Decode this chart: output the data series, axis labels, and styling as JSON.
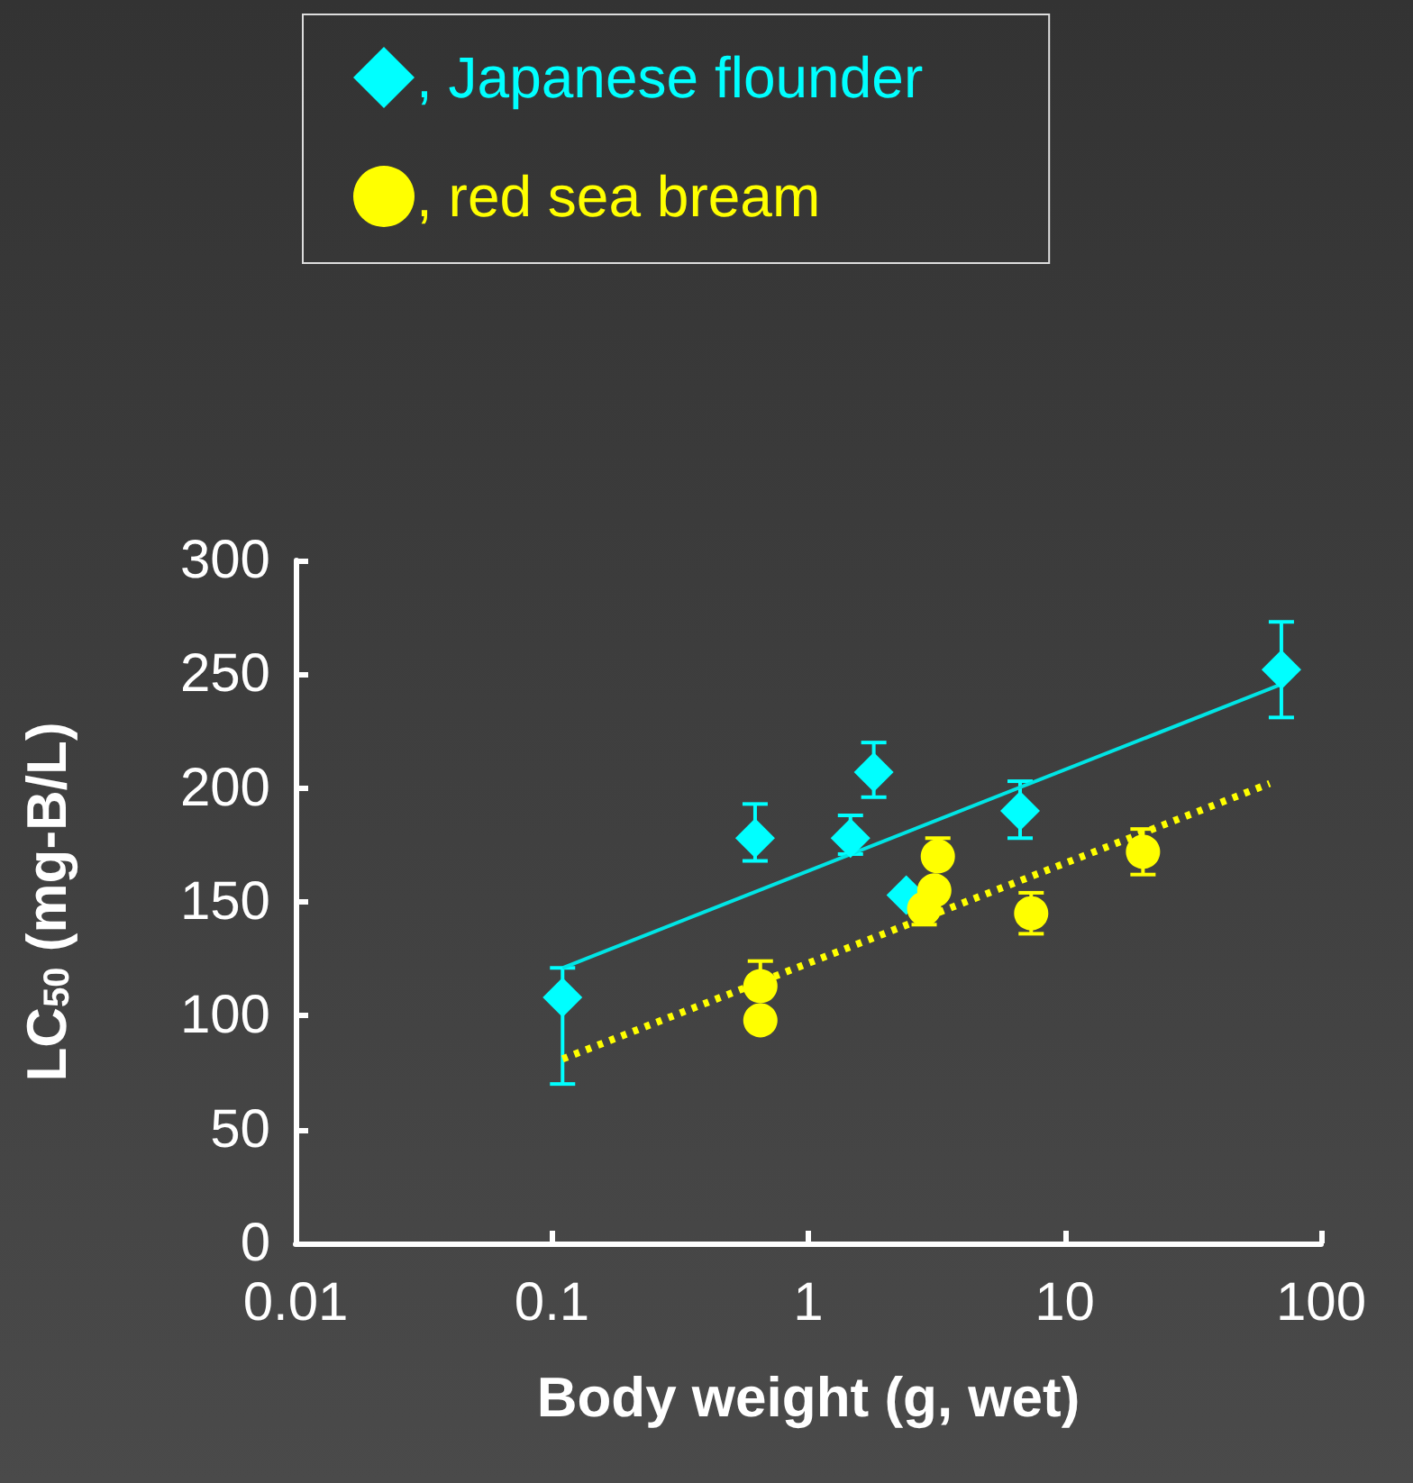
{
  "chart_data": {
    "type": "scatter",
    "xlabel": "Body weight (g, wet)",
    "ylabel": "LC$_{50}$ (mg-B/L)",
    "log": "x",
    "xlim": [
      0.01,
      100
    ],
    "xticks": [
      0.01,
      0.1,
      1,
      10,
      100
    ],
    "ylim": [
      0,
      300
    ],
    "yticks": [
      0,
      50,
      100,
      150,
      200,
      250,
      300
    ],
    "grid": false,
    "legend": "top",
    "series": [
      {
        "name": ", Japanese flounder",
        "color": "#00ffff",
        "marker": "diamond",
        "x": [
          0.11,
          0.62,
          1.46,
          1.8,
          2.41,
          6.7,
          70
        ],
        "values": [
          108,
          178,
          178,
          207,
          153,
          190,
          252
        ],
        "errors": [
          [
            70,
            121
          ],
          [
            168,
            193
          ],
          [
            171,
            188
          ],
          [
            196,
            220
          ],
          null,
          [
            178,
            203
          ],
          [
            231,
            273
          ]
        ]
      },
      {
        "name": ", red sea bream",
        "color": "#ffff00",
        "marker": "circle",
        "x": [
          0.65,
          0.65,
          3.2,
          3.1,
          2.83,
          7.4,
          20.2
        ],
        "values": [
          113,
          98,
          170,
          155,
          147,
          145,
          172
        ],
        "errors": [
          [
            113,
            124
          ],
          null,
          [
            170,
            178
          ],
          null,
          [
            140,
            147
          ],
          [
            136,
            154
          ],
          [
            162,
            182
          ]
        ]
      },
      {
        "type": "line",
        "color": "#00e5e5",
        "marker": "none",
        "line_style": "solid",
        "x": [
          0.11,
          68
        ],
        "values": [
          121,
          245
        ]
      },
      {
        "type": "line",
        "color": "#ffff00",
        "marker": "none",
        "line_style": "dotted",
        "x": [
          0.11,
          63
        ],
        "values": [
          81,
          202
        ]
      }
    ]
  }
}
